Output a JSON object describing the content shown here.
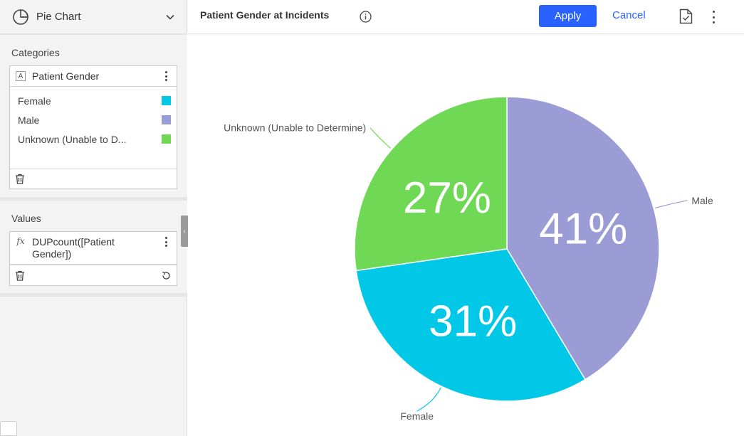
{
  "left_panel": {
    "chart_type": {
      "label": "Pie Chart",
      "icon": "pie-chart-icon"
    },
    "categories": {
      "title": "Categories",
      "field": {
        "type_badge": "A",
        "name": "Patient Gender"
      },
      "items": [
        {
          "label": "Female",
          "color": "#00c8e6"
        },
        {
          "label": "Male",
          "color": "#9b9bd6"
        },
        {
          "label": "Unknown (Unable to D...",
          "color": "#6fd854"
        }
      ]
    },
    "values": {
      "title": "Values",
      "field": {
        "type_badge": "fx",
        "name": "DUPcount([Patient Gender])"
      }
    }
  },
  "toolbar": {
    "title": "Patient Gender at Incidents",
    "apply_label": "Apply",
    "cancel_label": "Cancel",
    "accent_color": "#2962ff"
  },
  "chart_data": {
    "type": "pie",
    "title": "Patient Gender at Incidents",
    "categories": [
      "Male",
      "Female",
      "Unknown (Unable to Determine)"
    ],
    "values": [
      41,
      31,
      27
    ],
    "labels_pct": [
      "41%",
      "31%",
      "27%"
    ],
    "colors": [
      "#9b9bd6",
      "#00c8e6",
      "#6fd854"
    ],
    "start_angle_deg": 0,
    "direction": "clockwise"
  }
}
